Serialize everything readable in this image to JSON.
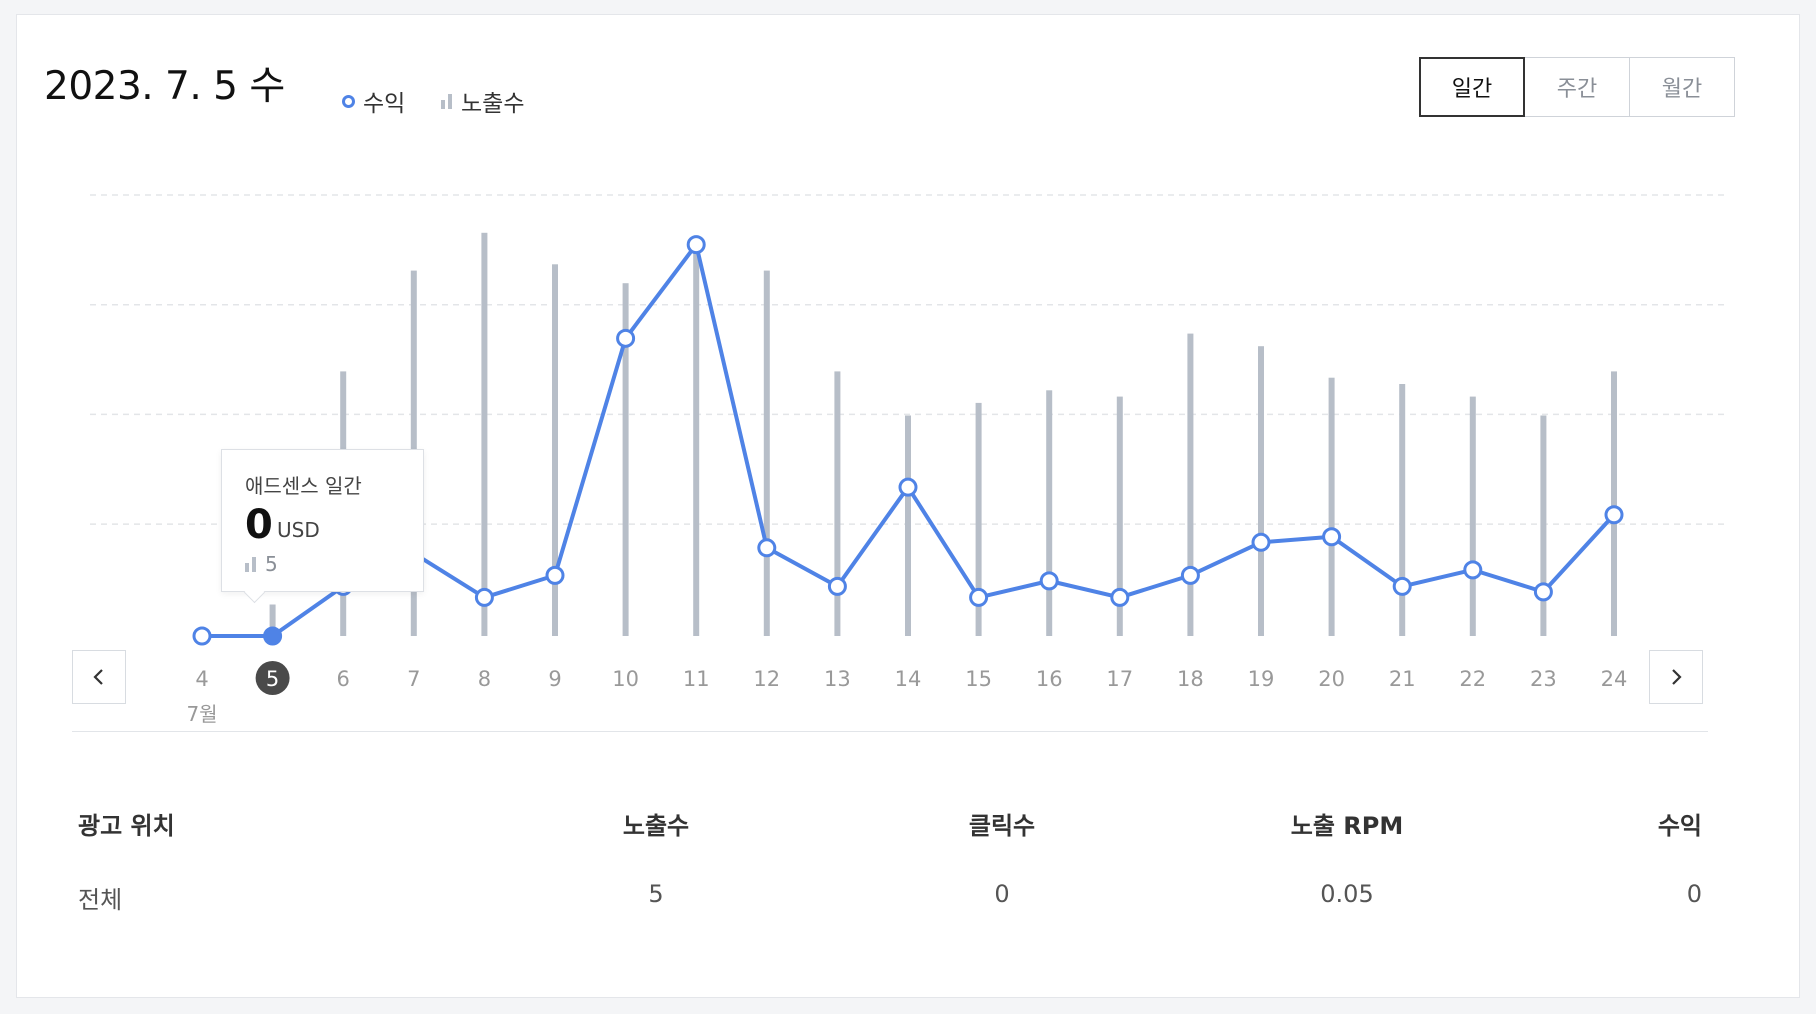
{
  "header": {
    "date_title": "2023. 7. 5 수",
    "legend_revenue": "수익",
    "legend_impressions": "노출수"
  },
  "period_tabs": [
    {
      "label": "일간",
      "active": true
    },
    {
      "label": "주간",
      "active": false
    },
    {
      "label": "월간",
      "active": false
    }
  ],
  "colors": {
    "revenue_line": "#4f83e6",
    "impression_bars": "#b7bec8",
    "selected_day_badge": "#4a4a4a",
    "grid": "#e3e5e8"
  },
  "navigation": {
    "prev_icon": "chevron-left-icon",
    "next_icon": "chevron-right-icon"
  },
  "tooltip": {
    "label": "애드센스 일간",
    "value": "0",
    "unit": "USD",
    "impressions": "5"
  },
  "chart_data": {
    "type": "bar+line",
    "categories": [
      "4",
      "5",
      "6",
      "7",
      "8",
      "9",
      "10",
      "11",
      "12",
      "13",
      "14",
      "15",
      "16",
      "17",
      "18",
      "19",
      "20",
      "21",
      "22",
      "23",
      "24"
    ],
    "month_label": "7월",
    "selected_index": 1,
    "series": [
      {
        "name": "노출수",
        "type": "bar",
        "values": [
          null,
          5,
          42,
          58,
          64,
          59,
          56,
          61,
          58,
          42,
          35,
          37,
          39,
          38,
          48,
          46,
          41,
          40,
          38,
          35,
          42
        ]
      },
      {
        "name": "수익",
        "type": "line",
        "values": [
          0,
          0,
          0.9,
          1.5,
          0.7,
          1.1,
          5.4,
          7.1,
          1.6,
          0.9,
          2.7,
          0.7,
          1.0,
          0.7,
          1.1,
          1.7,
          1.8,
          0.9,
          1.2,
          0.8,
          2.2
        ]
      }
    ],
    "grid_lines": 4,
    "grid": true,
    "legend_position": "top-left"
  },
  "table": {
    "headers": [
      "광고 위치",
      "노출수",
      "클릭수",
      "노출 RPM",
      "수익"
    ],
    "rows": [
      [
        "전체",
        "5",
        "0",
        "0.05",
        "0"
      ]
    ]
  }
}
